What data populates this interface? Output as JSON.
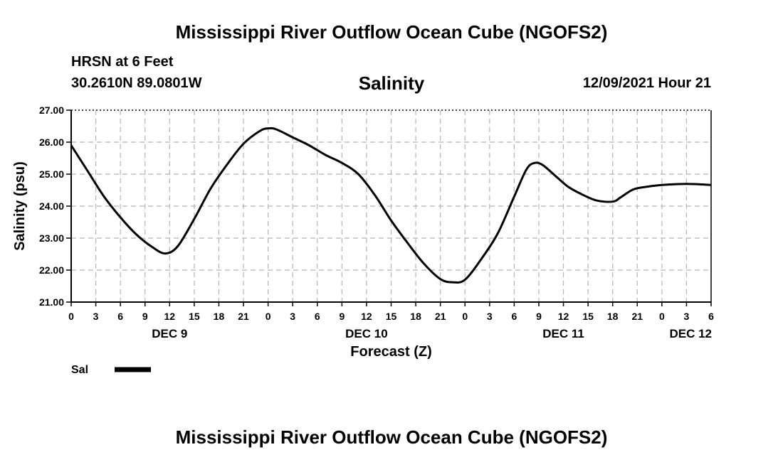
{
  "header": {
    "title": "Mississippi River Outflow Ocean Cube (NGOFS2)",
    "station": "HRSN at 6 Feet",
    "coordinates": "30.2610N  89.0801W",
    "parameter": "Salinity",
    "datetime": "12/09/2021 Hour 21"
  },
  "footer": {
    "title": "Mississippi River Outflow Ocean Cube (NGOFS2)"
  },
  "chart_data": {
    "type": "line",
    "title": "Salinity",
    "xlabel": "Forecast (Z)",
    "ylabel": "Salinity (psu)",
    "ylim": [
      21.0,
      27.0
    ],
    "yticks": [
      "21.00",
      "22.00",
      "23.00",
      "24.00",
      "25.00",
      "26.00",
      "27.00"
    ],
    "xlim_hours": [
      0,
      78
    ],
    "xtick_labels": [
      "0",
      "3",
      "6",
      "9",
      "12",
      "15",
      "18",
      "21",
      "0",
      "3",
      "6",
      "9",
      "12",
      "15",
      "18",
      "21",
      "0",
      "3",
      "6",
      "9",
      "12",
      "15",
      "18",
      "21",
      "0",
      "3",
      "6"
    ],
    "day_labels": [
      {
        "label": "DEC 9",
        "hour": 12
      },
      {
        "label": "DEC 10",
        "hour": 36
      },
      {
        "label": "DEC 11",
        "hour": 60
      },
      {
        "label": "DEC 12",
        "hour": 78
      }
    ],
    "grid": true,
    "legend": {
      "placement": "bottom-left",
      "entries": [
        {
          "name": "Sal",
          "color": "#000000"
        }
      ]
    },
    "series": [
      {
        "name": "Sal",
        "x": [
          0,
          2,
          4,
          6,
          8,
          10,
          11.5,
          13,
          15,
          17,
          19,
          21,
          23,
          24,
          25,
          27,
          29,
          31,
          33,
          35,
          37,
          39,
          41,
          43,
          45,
          46.5,
          48,
          50,
          52,
          54,
          55.5,
          56.5,
          57.5,
          59,
          60.5,
          62,
          64,
          66,
          67,
          68.5,
          70,
          72,
          74,
          76,
          78
        ],
        "y": [
          25.9,
          25.1,
          24.3,
          23.65,
          23.1,
          22.7,
          22.52,
          22.75,
          23.6,
          24.55,
          25.3,
          25.95,
          26.35,
          26.43,
          26.4,
          26.15,
          25.9,
          25.6,
          25.35,
          25.0,
          24.35,
          23.55,
          22.85,
          22.2,
          21.72,
          21.62,
          21.7,
          22.35,
          23.15,
          24.3,
          25.15,
          25.35,
          25.28,
          24.95,
          24.62,
          24.4,
          24.18,
          24.14,
          24.28,
          24.52,
          24.6,
          24.66,
          24.69,
          24.69,
          24.66
        ]
      }
    ]
  }
}
